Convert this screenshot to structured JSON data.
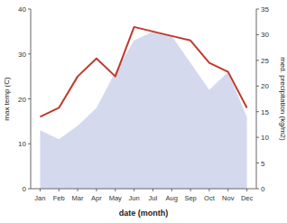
{
  "chart_data": {
    "type": "line",
    "categories": [
      "Jan",
      "Feb",
      "Mar",
      "Apr",
      "May",
      "Jun",
      "Jul",
      "Aug",
      "Sep",
      "Oct",
      "Nov",
      "Dec"
    ],
    "series": [
      {
        "type": "area",
        "color": "#c5cce8",
        "values": [
          13,
          11,
          14,
          18,
          26,
          33,
          35,
          34,
          28,
          22,
          26,
          16
        ]
      },
      {
        "type": "line",
        "color": "#c0392b",
        "values": [
          16,
          18,
          25,
          29,
          25,
          36,
          35,
          34,
          33,
          28,
          26,
          18
        ]
      }
    ],
    "xlabel": "date (month)",
    "ylabel": "max temp (C)",
    "y2label": "med. precipitation (kg/m2)",
    "ylim": [
      0,
      40
    ],
    "yticks": [
      0,
      10,
      20,
      30,
      40
    ],
    "y2lim": [
      0,
      35
    ],
    "y2ticks": [
      0,
      5,
      10,
      15,
      20,
      25,
      30,
      35
    ],
    "grid": false
  }
}
